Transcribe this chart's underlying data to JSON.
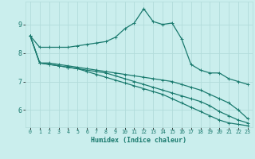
{
  "bg_color": "#caeeed",
  "grid_color": "#b2dcda",
  "line_color": "#1a7a6e",
  "xlabel": "Humidex (Indice chaleur)",
  "x_ticks": [
    0,
    1,
    2,
    3,
    4,
    5,
    6,
    7,
    8,
    9,
    10,
    11,
    12,
    13,
    14,
    15,
    16,
    17,
    18,
    19,
    20,
    21,
    22,
    23
  ],
  "ylim": [
    5.4,
    9.8
  ],
  "yticks": [
    6,
    7,
    8,
    9
  ],
  "series": [
    {
      "x": [
        0,
        1,
        2,
        3,
        4,
        5,
        6,
        7,
        8,
        9,
        10,
        11,
        12,
        13,
        14,
        15,
        16,
        17,
        18,
        19,
        20,
        21,
        22,
        23
      ],
      "y": [
        8.6,
        8.2,
        8.2,
        8.2,
        8.2,
        8.25,
        8.3,
        8.35,
        8.4,
        8.55,
        8.85,
        9.05,
        9.55,
        9.1,
        9.0,
        9.05,
        8.5,
        7.6,
        7.4,
        7.3,
        7.3,
        7.1,
        7.0,
        6.9
      ]
    },
    {
      "x": [
        0,
        1,
        2,
        3,
        4,
        5,
        6,
        7,
        8,
        9,
        10,
        11,
        12,
        13,
        14,
        15,
        16,
        17,
        18,
        19,
        20,
        21,
        22,
        23
      ],
      "y": [
        8.6,
        7.65,
        7.65,
        7.6,
        7.55,
        7.5,
        7.45,
        7.4,
        7.35,
        7.3,
        7.25,
        7.2,
        7.15,
        7.1,
        7.05,
        7.0,
        6.9,
        6.8,
        6.7,
        6.55,
        6.4,
        6.25,
        6.0,
        5.7
      ]
    },
    {
      "x": [
        0,
        1,
        2,
        3,
        4,
        5,
        6,
        7,
        8,
        9,
        10,
        11,
        12,
        13,
        14,
        15,
        16,
        17,
        18,
        19,
        20,
        21,
        22,
        23
      ],
      "y": [
        8.6,
        7.65,
        7.6,
        7.55,
        7.5,
        7.45,
        7.4,
        7.35,
        7.3,
        7.2,
        7.1,
        7.0,
        6.9,
        6.8,
        6.7,
        6.6,
        6.5,
        6.4,
        6.3,
        6.15,
        5.95,
        5.8,
        5.65,
        5.55
      ]
    },
    {
      "x": [
        0,
        1,
        2,
        3,
        4,
        5,
        6,
        7,
        8,
        9,
        10,
        11,
        12,
        13,
        14,
        15,
        16,
        17,
        18,
        19,
        20,
        21,
        22,
        23
      ],
      "y": [
        8.6,
        7.65,
        7.6,
        7.55,
        7.5,
        7.45,
        7.35,
        7.25,
        7.15,
        7.05,
        6.95,
        6.85,
        6.75,
        6.65,
        6.55,
        6.4,
        6.25,
        6.1,
        5.95,
        5.8,
        5.65,
        5.55,
        5.5,
        5.45
      ]
    }
  ]
}
